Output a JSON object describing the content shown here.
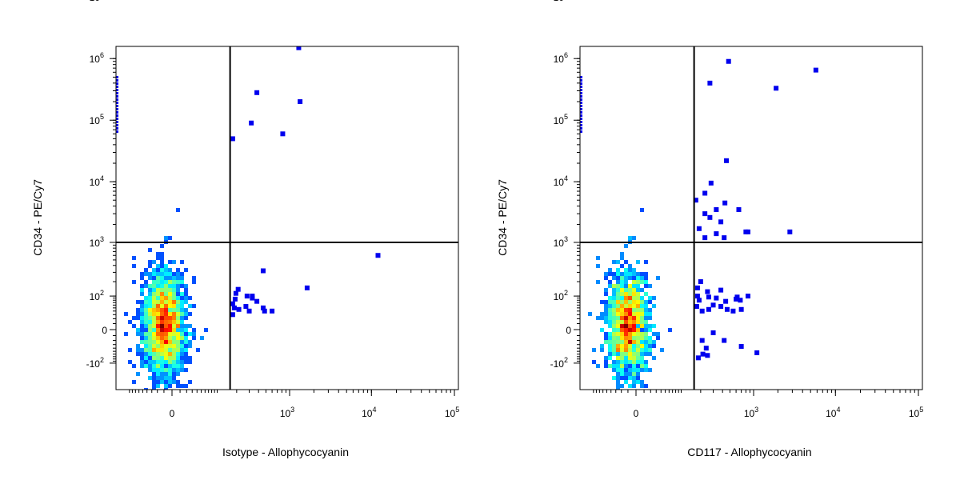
{
  "chart_data": [
    {
      "type": "scatter",
      "xlabel": "Isotype - Allophycocyanin",
      "ylabel": "CD34 - PE/Cy7",
      "x_scale": "biexponential",
      "y_scale": "biexponential",
      "x_ticks": [
        {
          "value": 0,
          "base": "0",
          "exp": ""
        },
        {
          "value": 1000,
          "base": "10",
          "exp": "3"
        },
        {
          "value": 10000,
          "base": "10",
          "exp": "4"
        },
        {
          "value": 100000,
          "base": "10",
          "exp": "5"
        }
      ],
      "y_ticks": [
        {
          "value": -100,
          "base": "-10",
          "exp": "2"
        },
        {
          "value": 0,
          "base": "0",
          "exp": ""
        },
        {
          "value": 100,
          "base": "10",
          "exp": "2"
        },
        {
          "value": 1000,
          "base": "10",
          "exp": "3"
        },
        {
          "value": 10000,
          "base": "10",
          "exp": "4"
        },
        {
          "value": 100000,
          "base": "10",
          "exp": "5"
        },
        {
          "value": 1000000,
          "base": "10",
          "exp": "6"
        },
        {
          "value": 10000000,
          "base": "10",
          "exp": "7"
        }
      ],
      "gate": {
        "x": 160,
        "y": 1000
      },
      "events": [
        [
          1300,
          1500000
        ],
        [
          1350,
          200000
        ],
        [
          380,
          280000
        ],
        [
          320,
          90000
        ],
        [
          820,
          60000
        ],
        [
          175,
          50000
        ],
        [
          12000,
          600
        ],
        [
          1650,
          150
        ],
        [
          330,
          100
        ],
        [
          330,
          90
        ],
        [
          460,
          320
        ],
        [
          210,
          140
        ],
        [
          280,
          100
        ],
        [
          380,
          75
        ],
        [
          460,
          50
        ],
        [
          270,
          55
        ],
        [
          300,
          40
        ],
        [
          215,
          45
        ],
        [
          190,
          85
        ],
        [
          185,
          50
        ],
        [
          175,
          30
        ],
        [
          175,
          65
        ],
        [
          600,
          40
        ],
        [
          480,
          40
        ],
        [
          195,
          115
        ]
      ]
    },
    {
      "type": "scatter",
      "xlabel": "CD117 - Allophycocyanin",
      "ylabel": "CD34 - PE/Cy7",
      "x_scale": "biexponential",
      "y_scale": "biexponential",
      "x_ticks": [
        {
          "value": 0,
          "base": "0",
          "exp": ""
        },
        {
          "value": 1000,
          "base": "10",
          "exp": "3"
        },
        {
          "value": 10000,
          "base": "10",
          "exp": "4"
        },
        {
          "value": 100000,
          "base": "10",
          "exp": "5"
        }
      ],
      "y_ticks": [
        {
          "value": -100,
          "base": "-10",
          "exp": "2"
        },
        {
          "value": 0,
          "base": "0",
          "exp": ""
        },
        {
          "value": 100,
          "base": "10",
          "exp": "2"
        },
        {
          "value": 1000,
          "base": "10",
          "exp": "3"
        },
        {
          "value": 10000,
          "base": "10",
          "exp": "4"
        },
        {
          "value": 100000,
          "base": "10",
          "exp": "5"
        },
        {
          "value": 1000000,
          "base": "10",
          "exp": "6"
        },
        {
          "value": 10000000,
          "base": "10",
          "exp": "7"
        }
      ],
      "gate": {
        "x": 160,
        "y": 1000
      },
      "events": [
        [
          4200,
          2000000
        ],
        [
          5800,
          650000
        ],
        [
          1900,
          330000
        ],
        [
          480,
          900000
        ],
        [
          270,
          400000
        ],
        [
          450,
          22000
        ],
        [
          280,
          9500
        ],
        [
          230,
          6500
        ],
        [
          330,
          3500
        ],
        [
          430,
          4500
        ],
        [
          650,
          3500
        ],
        [
          230,
          3000
        ],
        [
          270,
          2600
        ],
        [
          380,
          2200
        ],
        [
          800,
          1500
        ],
        [
          850,
          1500
        ],
        [
          2800,
          1500
        ],
        [
          330,
          1400
        ],
        [
          420,
          1200
        ],
        [
          230,
          1200
        ],
        [
          170,
          5000
        ],
        [
          190,
          1700
        ],
        [
          850,
          100
        ],
        [
          620,
          95
        ],
        [
          600,
          85
        ],
        [
          680,
          80
        ],
        [
          440,
          75
        ],
        [
          330,
          90
        ],
        [
          250,
          125
        ],
        [
          200,
          200
        ],
        [
          180,
          150
        ],
        [
          300,
          60
        ],
        [
          380,
          55
        ],
        [
          460,
          45
        ],
        [
          550,
          40
        ],
        [
          700,
          45
        ],
        [
          260,
          45
        ],
        [
          210,
          40
        ],
        [
          190,
          80
        ],
        [
          175,
          55
        ],
        [
          210,
          -20
        ],
        [
          240,
          -40
        ],
        [
          300,
          -5
        ],
        [
          420,
          -20
        ],
        [
          700,
          -35
        ],
        [
          1100,
          -55
        ],
        [
          215,
          -60
        ],
        [
          185,
          -75
        ],
        [
          250,
          -65
        ],
        [
          180,
          100
        ],
        [
          380,
          135
        ],
        [
          260,
          95
        ]
      ]
    }
  ]
}
